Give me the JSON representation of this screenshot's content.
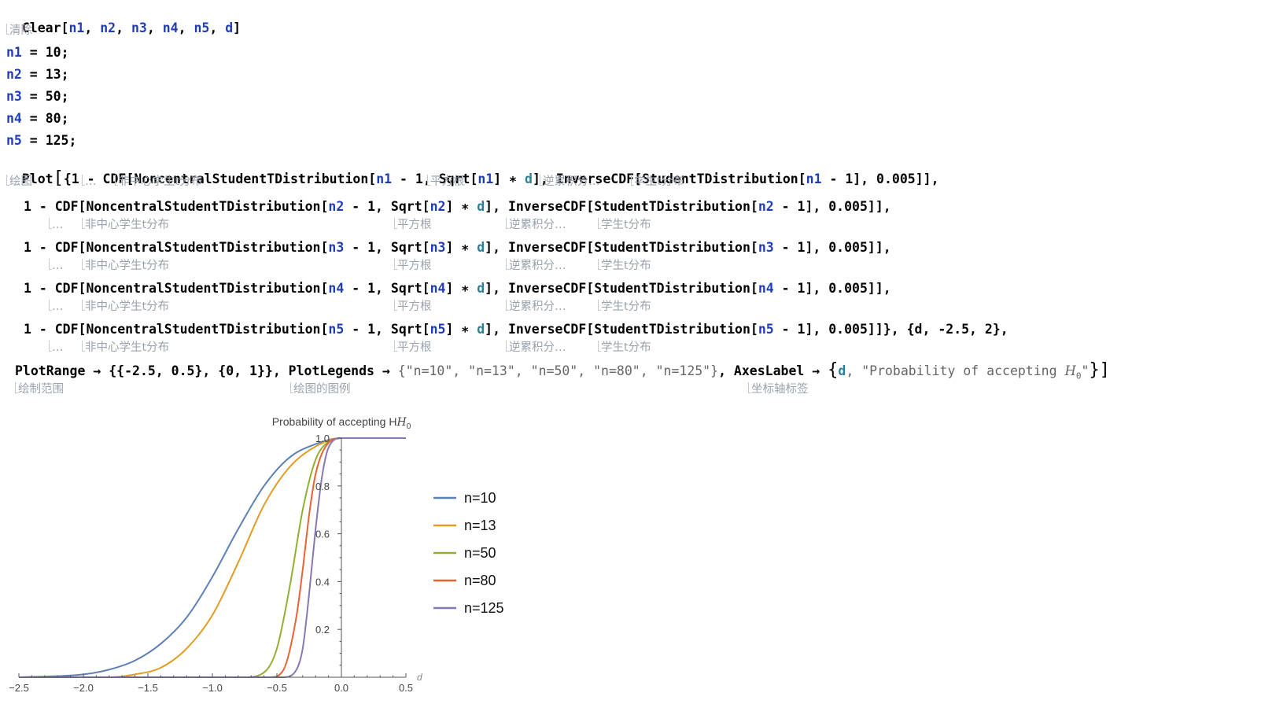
{
  "notebook": {
    "line1": {
      "fn": "Clear",
      "open": "[",
      "args": [
        "n1",
        "n2",
        "n3",
        "n4",
        "n5",
        "d"
      ],
      "close": "]"
    },
    "line1_hint": "清除",
    "assignments": [
      {
        "var": "n1",
        "value": "10"
      },
      {
        "var": "n2",
        "value": "13"
      },
      {
        "var": "n3",
        "value": "50"
      },
      {
        "var": "n4",
        "value": "80"
      },
      {
        "var": "n5",
        "value": "125"
      }
    ],
    "plot_line": {
      "fn": "Plot",
      "text_a": "{1 - CDF[NoncentralStudentTDistribution[",
      "v1": "n1",
      "text_b": " - 1, Sqrt[",
      "v2": "n1",
      "text_c": "] ∗ ",
      "v3": "d",
      "text_d": "], InverseCDF[StudentTDistribution[",
      "v4": "n1",
      "text_e": " - 1], 0.005]],"
    },
    "plot_hints": {
      "a": "绘图",
      "b": "…",
      "c": "非中心学生t分布",
      "d": "平方根",
      "e": "逆累积分…",
      "f": "学生t分布"
    },
    "cdf_lines": [
      {
        "var": "n2",
        "tail": "]],"
      },
      {
        "var": "n3",
        "tail": "]],"
      },
      {
        "var": "n4",
        "tail": "]],"
      },
      {
        "var": "n5",
        "tail": "]]}, {d, -2.5, 2},"
      }
    ],
    "cdf_parts": {
      "a": "1 - CDF[NoncentralStudentTDistribution[",
      "b": " - 1, Sqrt[",
      "c": "] ∗ ",
      "d": "d",
      "e": "], InverseCDF[StudentTDistribution[",
      "f": " - 1], 0.005"
    },
    "cdf_hints": {
      "a": "…",
      "b": "非中心学生t分布",
      "c": "平方根",
      "d": "逆累积分…",
      "e": "学生t分布"
    },
    "options_line": {
      "a": "PlotRange → {{-2.5, 0.5}, {0, 1}}, PlotLegends → ",
      "b": "{\"n=10\", \"n=13\", \"n=50\", \"n=80\", \"n=125\"}",
      "c": ", AxesLabel → ",
      "d_open": "{",
      "d_var": "d",
      "d_str": ", \"Probability of accepting ",
      "d_h": "H",
      "d_sub": "0",
      "d_end": "\"",
      "d_close": "}]"
    },
    "options_hints": {
      "a": "绘制范围",
      "b": "绘图的图例",
      "c": "坐标轴标签"
    }
  },
  "chart_data": {
    "type": "line",
    "xlabel": "d",
    "ylabel": "Probability of accepting H",
    "ylabel_sub": "0",
    "xlim": [
      -2.5,
      0.5
    ],
    "ylim": [
      0,
      1
    ],
    "x_ticks": [
      "-2.5",
      "-2.0",
      "-1.5",
      "-1.0",
      "-0.5",
      "0.0",
      "0.5"
    ],
    "y_ticks": [
      "0.2",
      "0.4",
      "0.6",
      "0.8",
      "1.0"
    ],
    "legend_position": "right",
    "series": [
      {
        "name": "n=10",
        "color": "#5e81b5",
        "x": [
          -2.5,
          -2.0,
          -1.8,
          -1.6,
          -1.4,
          -1.2,
          -1.0,
          -0.8,
          -0.6,
          -0.4,
          -0.2,
          0.0,
          0.5
        ],
        "y": [
          0.0,
          0.012,
          0.032,
          0.07,
          0.14,
          0.25,
          0.42,
          0.62,
          0.8,
          0.92,
          0.975,
          1.0,
          1.0
        ]
      },
      {
        "name": "n=13",
        "color": "#e19c24",
        "x": [
          -2.5,
          -1.8,
          -1.6,
          -1.4,
          -1.2,
          -1.0,
          -0.8,
          -0.6,
          -0.4,
          -0.2,
          0.0,
          0.5
        ],
        "y": [
          0.0,
          0.0,
          0.012,
          0.04,
          0.12,
          0.26,
          0.48,
          0.72,
          0.88,
          0.965,
          1.0,
          1.0
        ]
      },
      {
        "name": "n=50",
        "color": "#8fb032",
        "x": [
          -2.5,
          -0.75,
          -0.6,
          -0.5,
          -0.4,
          -0.3,
          -0.2,
          -0.1,
          0.0,
          0.5
        ],
        "y": [
          0.0,
          0.0,
          0.02,
          0.12,
          0.38,
          0.7,
          0.91,
          0.985,
          1.0,
          1.0
        ]
      },
      {
        "name": "n=80",
        "color": "#eb6235",
        "x": [
          -2.5,
          -0.55,
          -0.45,
          -0.35,
          -0.3,
          -0.25,
          -0.2,
          -0.1,
          0.0,
          0.5
        ],
        "y": [
          0.0,
          0.0,
          0.03,
          0.25,
          0.45,
          0.68,
          0.85,
          0.98,
          1.0,
          1.0
        ]
      },
      {
        "name": "n=125",
        "color": "#8778b3",
        "x": [
          -2.5,
          -0.45,
          -0.35,
          -0.3,
          -0.25,
          -0.2,
          -0.15,
          -0.1,
          0.0,
          0.5
        ],
        "y": [
          0.0,
          0.0,
          0.03,
          0.12,
          0.35,
          0.62,
          0.84,
          0.96,
          1.0,
          1.0
        ]
      }
    ]
  }
}
